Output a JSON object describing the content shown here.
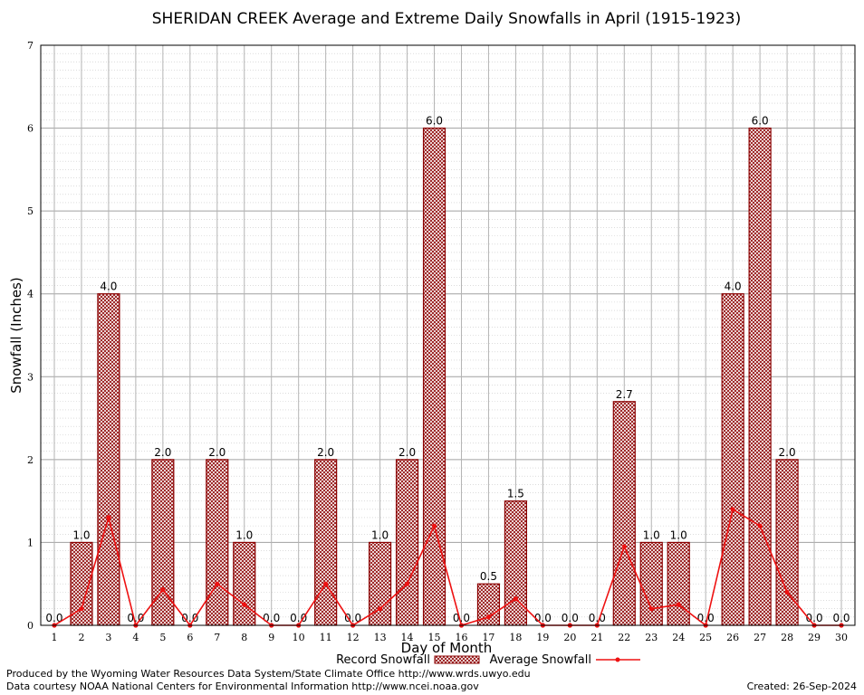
{
  "chart_data": {
    "type": "bar",
    "title": "SHERIDAN CREEK Average and Extreme Daily Snowfalls in April (1915-1923)",
    "xlabel": "Day of Month",
    "ylabel": "Snowfall (Inches)",
    "ylim": [
      0,
      7
    ],
    "yticks": [
      "0",
      "1",
      "2",
      "3",
      "4",
      "5",
      "6",
      "7"
    ],
    "categories": [
      "1",
      "2",
      "3",
      "4",
      "5",
      "6",
      "7",
      "8",
      "9",
      "10",
      "11",
      "12",
      "13",
      "14",
      "15",
      "16",
      "17",
      "18",
      "19",
      "20",
      "21",
      "22",
      "23",
      "24",
      "25",
      "26",
      "27",
      "28",
      "29",
      "30"
    ],
    "grid": true,
    "legend_position": "bottom",
    "series": [
      {
        "name": "Record Snowfall",
        "type": "bar",
        "color": "#8b0000",
        "values": [
          0.0,
          1.0,
          4.0,
          0.0,
          2.0,
          0.0,
          2.0,
          1.0,
          0.0,
          0.0,
          2.0,
          0.0,
          1.0,
          2.0,
          6.0,
          0.0,
          0.5,
          1.5,
          0.0,
          0.0,
          0.0,
          2.7,
          1.0,
          1.0,
          0.0,
          4.0,
          6.0,
          2.0,
          0.0,
          0.0
        ],
        "labels": [
          "0.0",
          "1.0",
          "4.0",
          "0.0",
          "2.0",
          "0.0",
          "2.0",
          "1.0",
          "0.0",
          "0.0",
          "2.0",
          "0.0",
          "1.0",
          "2.0",
          "6.0",
          "0.0",
          "0.5",
          "1.5",
          "0.0",
          "0.0",
          "0.0",
          "2.7",
          "1.0",
          "1.0",
          "0.0",
          "4.0",
          "6.0",
          "2.0",
          "0.0",
          "0.0"
        ]
      },
      {
        "name": "Average Snowfall",
        "type": "line",
        "color": "#ee1111",
        "values": [
          0.0,
          0.2,
          1.3,
          0.0,
          0.43,
          0.0,
          0.5,
          0.25,
          0.0,
          0.0,
          0.5,
          0.0,
          0.2,
          0.5,
          1.2,
          0.0,
          0.1,
          0.32,
          0.0,
          0.0,
          0.0,
          0.95,
          0.2,
          0.25,
          0.0,
          1.4,
          1.2,
          0.4,
          0.0,
          0.0
        ]
      }
    ]
  },
  "footer": {
    "produced_by": "Produced by the Wyoming Water Resources Data System/State Climate Office http://www.wrds.uwyo.edu",
    "data_courtesy": "Data courtesy NOAA National Centers for Environmental Information http://www.ncei.noaa.gov",
    "created": "Created:  26-Sep-2024"
  }
}
